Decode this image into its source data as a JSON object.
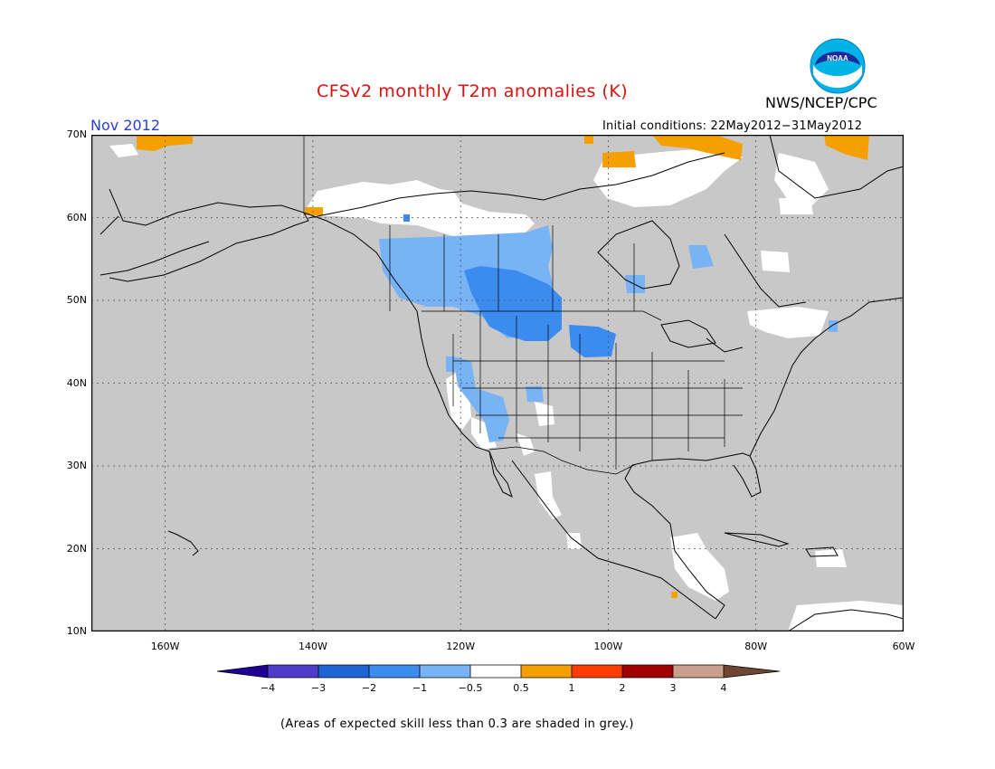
{
  "title": "CFSv2 monthly T2m anomalies (K)",
  "agency": "NWS/NCEP/CPC",
  "logo_text": "NOAA",
  "month": "Nov 2012",
  "initial_conditions": "Initial conditions: 22May2012−31May2012",
  "footnote": "(Areas of expected skill less than 0.3 are shaded in grey.)",
  "map": {
    "lon_range": [
      -170,
      -60
    ],
    "lat_range": [
      10,
      70
    ],
    "lat_ticks": [
      {
        "value": 70,
        "label": "70N"
      },
      {
        "value": 60,
        "label": "60N"
      },
      {
        "value": 50,
        "label": "50N"
      },
      {
        "value": 40,
        "label": "40N"
      },
      {
        "value": 30,
        "label": "30N"
      },
      {
        "value": 20,
        "label": "20N"
      },
      {
        "value": 10,
        "label": "10N"
      }
    ],
    "lon_ticks": [
      {
        "value": -160,
        "label": "160W"
      },
      {
        "value": -140,
        "label": "140W"
      },
      {
        "value": -120,
        "label": "120W"
      },
      {
        "value": -100,
        "label": "100W"
      },
      {
        "value": -80,
        "label": "80W"
      },
      {
        "value": -60,
        "label": "60W"
      }
    ],
    "grid": "dotted",
    "skill_mask_color": "#c8c8c8",
    "anomaly_regions": [
      {
        "category": "-1 to -0.5",
        "color": "#78b4f5",
        "area": "western Canada, British Columbia to Saskatchewan"
      },
      {
        "category": "-2 to -1",
        "color": "#3c8cf0",
        "area": "southern Alberta / Saskatchewan and Montana"
      },
      {
        "category": "-2 to -1",
        "color": "#3c8cf0",
        "area": "North Dakota"
      },
      {
        "category": "-1 to -0.5",
        "color": "#78b4f5",
        "area": "California, Nevada, Arizona"
      },
      {
        "category": "-0.5 to 0.5",
        "color": "#ffffff",
        "area": "Yukon and Arctic coast, Quebec, Nunavut, Mexico, Central America"
      },
      {
        "category": "0.5 to 1",
        "color": "#f5a000",
        "area": "Arctic coast of Alaska and Canada, northern Greenland"
      }
    ]
  },
  "colorbar": {
    "ticks": [
      "−4",
      "−3",
      "−2",
      "−1",
      "−0.5",
      "0.5",
      "1",
      "2",
      "3",
      "4"
    ],
    "colors": [
      "#1e0096",
      "#503cc8",
      "#1e64d2",
      "#3c8cf0",
      "#78b4f5",
      "#ffffff",
      "#f5a000",
      "#ff3c00",
      "#a00000",
      "#c8a08c",
      "#6e4632"
    ]
  }
}
